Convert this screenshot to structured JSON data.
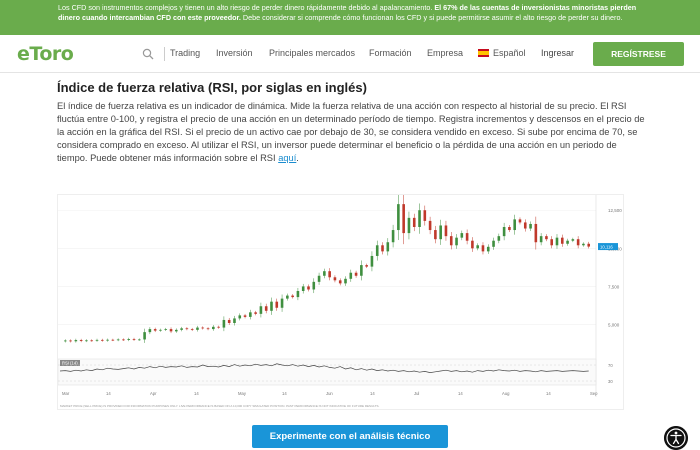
{
  "banner": {
    "text_normal": "Los CFD son instrumentos complejos y tienen un alto riesgo de perder dinero rápidamente debido al apalancamiento. ",
    "text_bold": "El 67% de las cuentas de inversionistas minoristas pierden dinero cuando intercambian CFD con este proveedor.",
    "text_tail": " Debe considerar si comprende cómo funcionan los CFD y si puede permitirse asumir el alto riesgo de perder su dinero."
  },
  "nav": {
    "logo": "eToro",
    "items": [
      "Trading",
      "Inversión",
      "Principales mercados",
      "Formación",
      "Empresa",
      "Español"
    ],
    "login": "Ingresar",
    "register": "REGÍSTRESE"
  },
  "article": {
    "title": "Índice de fuerza relativa (RSI, por siglas en inglés)",
    "body": "El índice de fuerza relativa es un indicador de dinámica. Mide la fuerza relativa de una acción con respecto al historial de su precio. El RSI fluctúa entre 0-100, y registra el precio de una acción en un determinado período de tiempo. Registra incrementos y descensos en el precio de la acción en la gráfica del RSI. Si el precio de un activo cae por debajo de 30, se considera vendido en exceso. Si sube por encima de 70, se considera comprado en exceso. Al utilizar el RSI, un inversor puede determinar el beneficio o la pérdida de una acción en un periodo de tiempo. Puede obtener más información sobre el RSI ",
    "link": "aquí",
    "end": "."
  },
  "chart_data": {
    "type": "candlestick",
    "x_labels": [
      "Mar",
      "14",
      "Apr",
      "14",
      "May",
      "14",
      "Jun",
      "14",
      "Jul",
      "14",
      "Aug",
      "14",
      "Sep"
    ],
    "y_ticks": [
      "12,500",
      "10,000",
      "7,500",
      "5,000"
    ],
    "last_price_label": "10,116",
    "price_series": [
      3900,
      3950,
      3900,
      3980,
      3920,
      3960,
      3940,
      3990,
      3950,
      4000,
      3980,
      4020,
      3990,
      4050,
      4000,
      4020,
      4500,
      4700,
      4600,
      4650,
      4700,
      4550,
      4650,
      4750,
      4700,
      4650,
      4800,
      4750,
      4700,
      4850,
      4800,
      5300,
      5100,
      5400,
      5600,
      5500,
      5800,
      5700,
      6200,
      5900,
      6500,
      6100,
      6700,
      6900,
      6800,
      7200,
      7500,
      7300,
      7800,
      8200,
      8500,
      8100,
      7900,
      7700,
      8000,
      8400,
      8200,
      8900,
      8800,
      9500,
      10200,
      9800,
      10400,
      11200,
      12900,
      11000,
      12000,
      11400,
      12500,
      11800,
      11200,
      10600,
      11500,
      10800,
      10200,
      10700,
      11000,
      10500,
      10000,
      10200,
      9800,
      10100,
      10500,
      10800,
      11400,
      11200,
      11900,
      11700,
      11300,
      11600,
      10400,
      10800,
      10600,
      10200,
      10700,
      10300,
      10500,
      10600,
      10200,
      10300,
      10116
    ],
    "rsi": {
      "label": "RSI (14)",
      "levels": [
        "70",
        "30"
      ],
      "series": [
        55,
        56,
        54,
        57,
        55,
        58,
        56,
        60,
        58,
        62,
        60,
        59,
        61,
        63,
        60,
        64,
        62,
        66,
        63,
        67,
        64,
        66,
        65,
        68,
        64,
        66,
        65,
        70,
        66,
        67,
        65,
        69,
        66,
        71,
        67,
        70,
        68,
        72,
        69,
        71,
        68,
        73,
        70,
        68,
        71,
        67,
        70,
        66,
        69,
        65,
        68,
        64,
        62,
        66,
        60,
        63,
        58,
        61,
        57,
        60,
        56,
        58,
        55,
        57,
        54,
        56,
        53,
        55,
        52,
        54,
        51,
        53,
        55,
        57,
        54,
        56,
        53,
        55,
        52,
        56,
        54,
        57,
        55,
        58,
        56,
        55,
        57,
        54,
        56,
        55,
        53,
        56,
        54,
        55,
        56,
        54,
        55,
        56,
        55,
        54,
        55
      ]
    },
    "disclaimer": "MARKET PRICE (SELL PRICE) IS PROVIDED FOR INFORMATION PURPOSES ONLY. LIVE PERFORMANCE IS BASED ON A 10,000 COPY SIMULATED POSITION. PAST PERFORMANCE IS NOT INDICATIVE OF FUTURE RESULTS."
  },
  "cta": "Experimente con el análisis técnico",
  "colors": {
    "brand_green": "#6aac4c",
    "cta_blue": "#1a95d8",
    "up": "#3f8f3f",
    "down": "#c0392b"
  }
}
